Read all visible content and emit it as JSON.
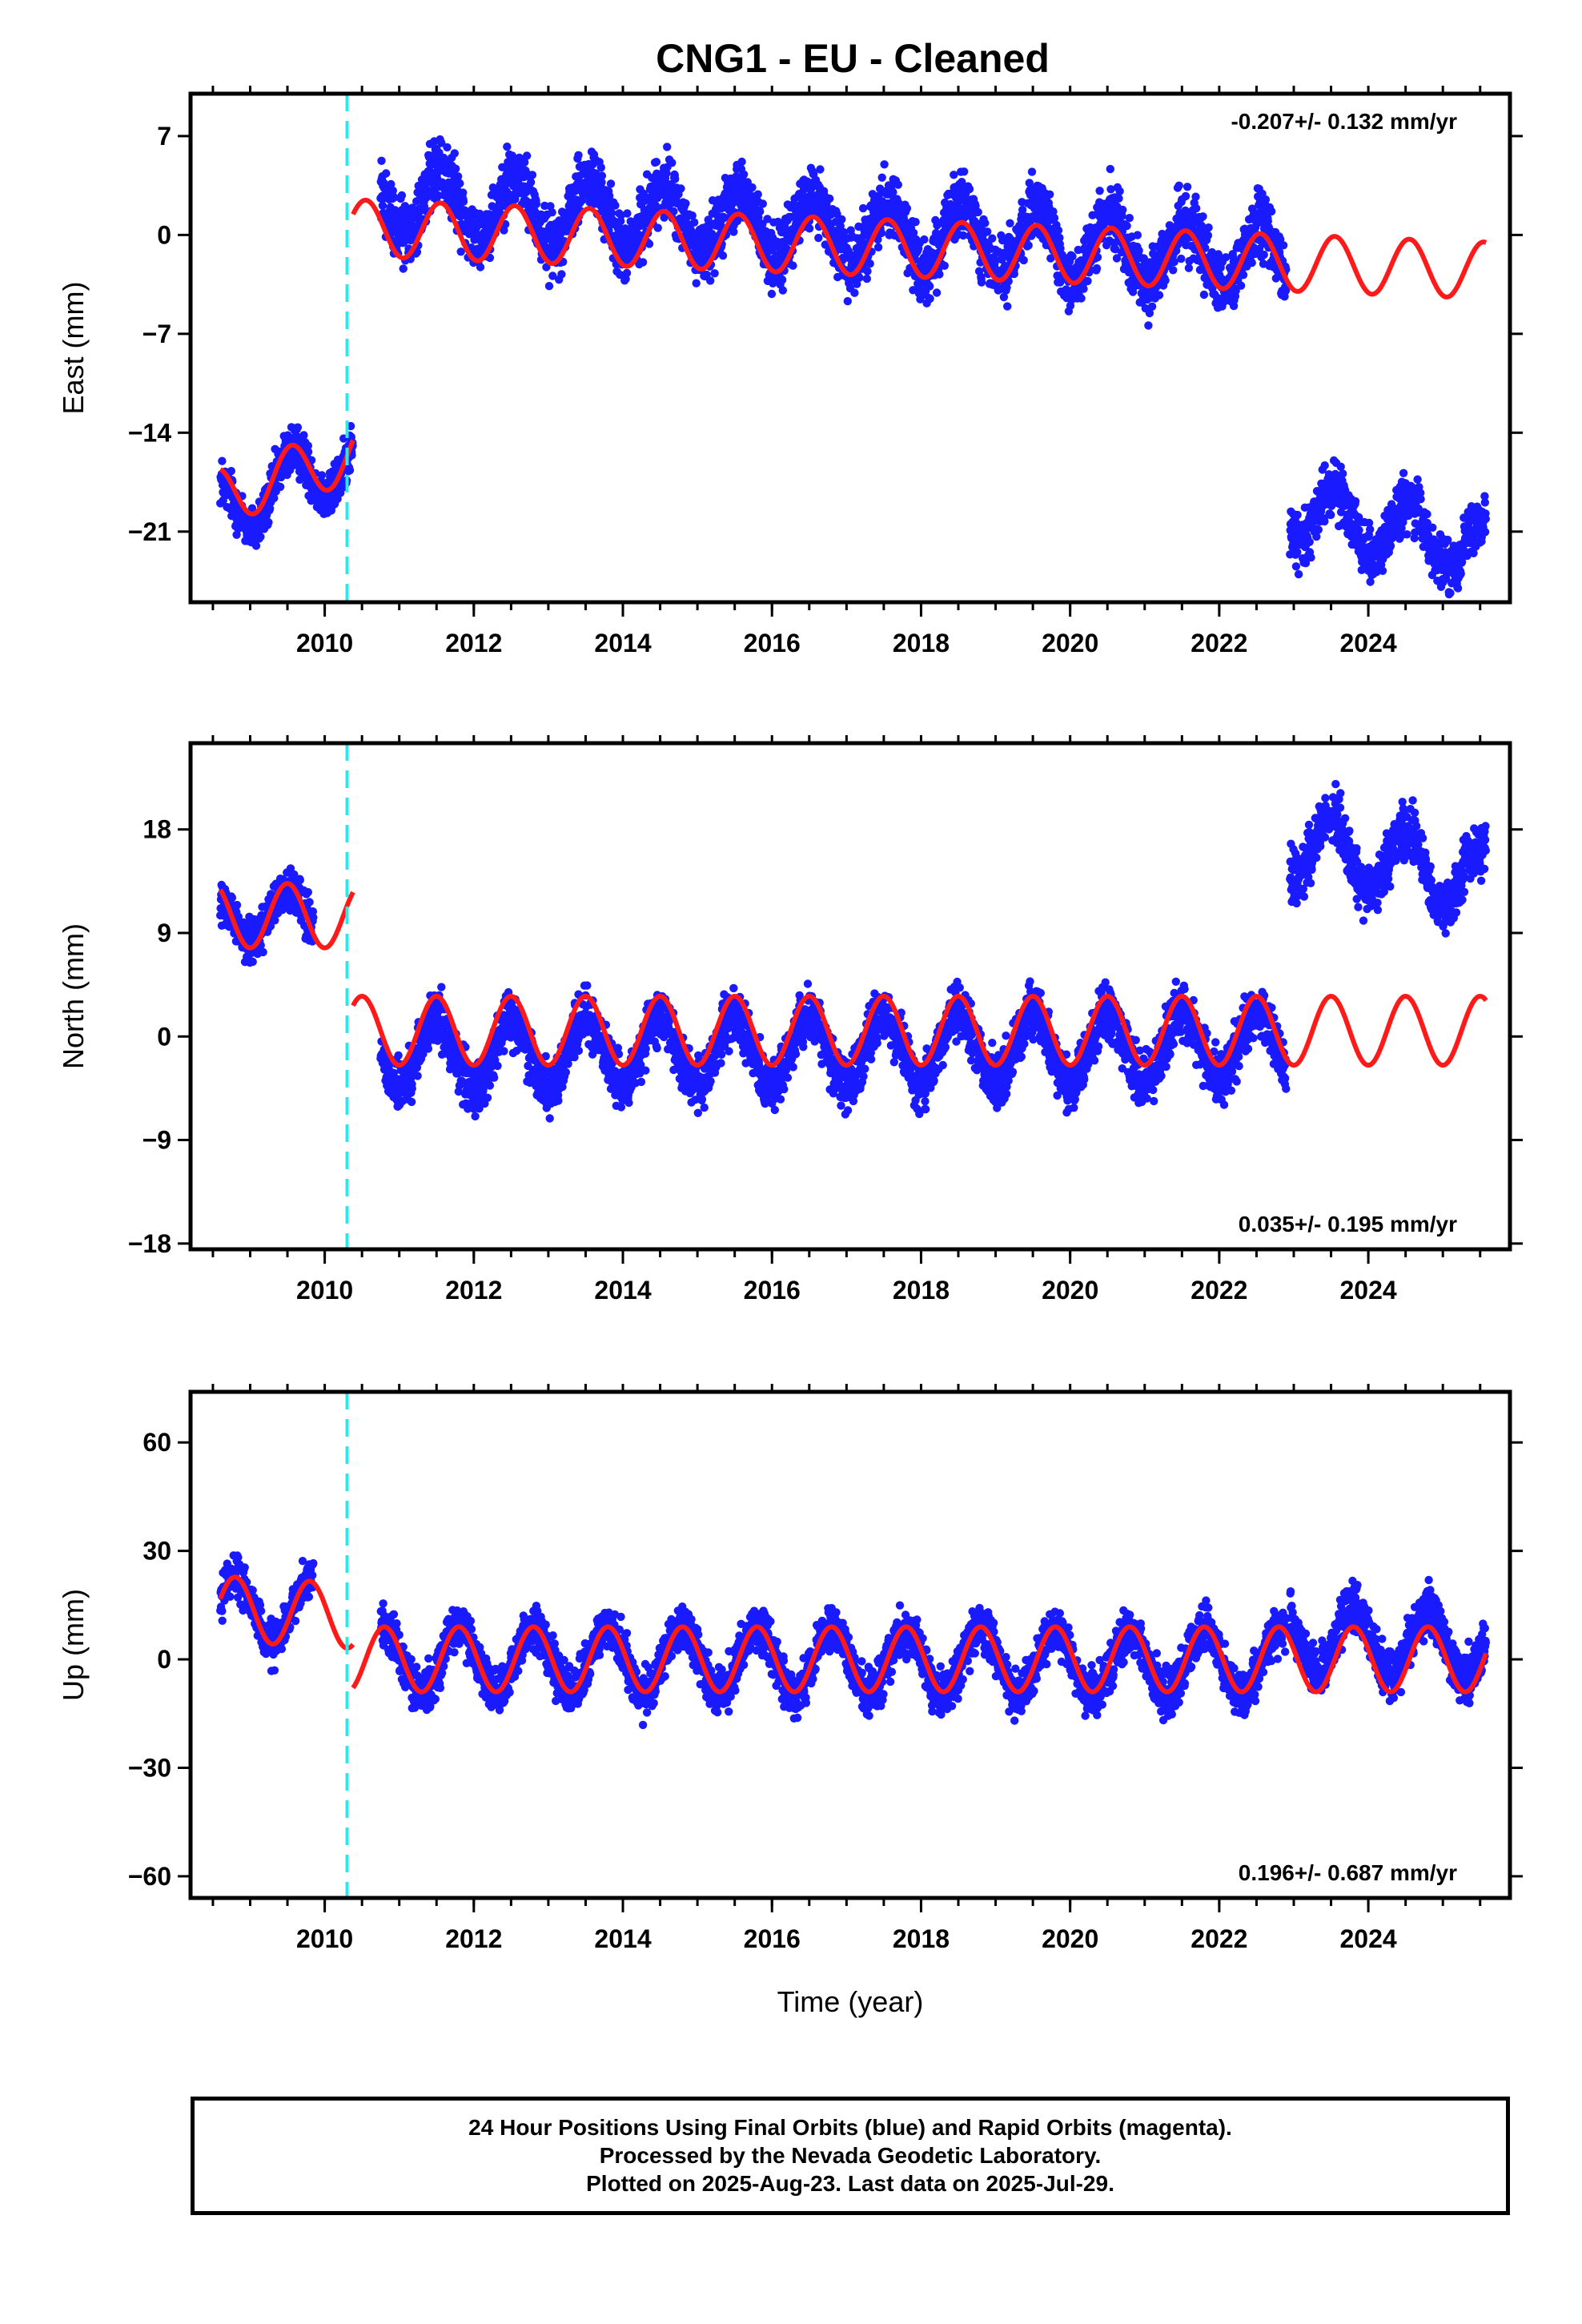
{
  "title": "CNG1  - EU - Cleaned",
  "colors": {
    "data": "#1a1aff",
    "model": "#ff1a1a",
    "event": "#33e5e5",
    "frame": "#000000"
  },
  "chart_data": [
    {
      "type": "scatter",
      "name": "east",
      "ylabel": "East (mm)",
      "xlabel": "",
      "xlim": [
        2008.2,
        2025.9
      ],
      "ylim": [
        -26,
        10
      ],
      "yticks": [
        7,
        0,
        -7,
        -14,
        -21
      ],
      "ytick_labels": [
        "7",
        "0",
        "−7",
        "−14",
        "−21"
      ],
      "xticks": [
        2010,
        2012,
        2014,
        2016,
        2018,
        2020,
        2022,
        2024
      ],
      "rate": "-0.207+/- 0.132 mm/yr",
      "rate_position": "top-right",
      "event_line": 2010.3,
      "data_segments": [
        {
          "x0": 2008.6,
          "x1": 2010.38,
          "level0": -19.5,
          "level1": -15.5,
          "amp": 2.2,
          "phase": 0.3,
          "noise": 1.5
        },
        {
          "x0": 2010.75,
          "x1": 2022.9,
          "level0": 2.5,
          "level1": -1.8,
          "amp": 2.3,
          "phase": 0.3,
          "noise": 2.0
        },
        {
          "x0": 2022.95,
          "x1": 2025.58,
          "level0": -19.5,
          "level1": -22.0,
          "amp": 2.0,
          "phase": 0.3,
          "noise": 1.6
        }
      ],
      "model_segments": [
        {
          "x0": 2008.6,
          "x1": 2010.38,
          "level0": -18.5,
          "level1": -15.5,
          "amp": 2.0,
          "phase": 0.3
        },
        {
          "x0": 2010.38,
          "x1": 2025.58,
          "level0": 0.5,
          "level1": -2.5,
          "amp": 2.0,
          "phase": 0.3
        }
      ]
    },
    {
      "type": "scatter",
      "name": "north",
      "ylabel": "North (mm)",
      "xlabel": "",
      "xlim": [
        2008.2,
        2025.9
      ],
      "ylim": [
        -18.5,
        25.5
      ],
      "yticks": [
        18,
        9,
        0,
        -9,
        -18
      ],
      "ytick_labels": [
        "18",
        "9",
        "0",
        "−9",
        "−18"
      ],
      "xticks": [
        2010,
        2012,
        2014,
        2016,
        2018,
        2020,
        2022,
        2024
      ],
      "rate": "0.035+/- 0.195 mm/yr",
      "rate_position": "bottom-right",
      "event_line": 2010.3,
      "data_segments": [
        {
          "x0": 2008.6,
          "x1": 2009.85,
          "level0": 10.5,
          "level1": 10.5,
          "amp": 2.0,
          "phase": 0.25,
          "noise": 1.6
        },
        {
          "x0": 2010.75,
          "x1": 2022.9,
          "level0": -1.5,
          "level1": -0.8,
          "amp": 3.0,
          "phase": 0.25,
          "noise": 2.0
        },
        {
          "x0": 2022.95,
          "x1": 2025.58,
          "level0": 17.0,
          "level1": 13.5,
          "amp": 3.0,
          "phase": 0.25,
          "noise": 2.0
        }
      ],
      "model_segments": [
        {
          "x0": 2008.6,
          "x1": 2010.38,
          "level0": 10.5,
          "level1": 10.5,
          "amp": 2.8,
          "phase": 0.25
        },
        {
          "x0": 2010.38,
          "x1": 2025.58,
          "level0": 0.5,
          "level1": 0.5,
          "amp": 3.0,
          "phase": 0.25
        }
      ]
    },
    {
      "type": "scatter",
      "name": "up",
      "ylabel": "Up (mm)",
      "xlabel": "Time (year)",
      "xlim": [
        2008.2,
        2025.9
      ],
      "ylim": [
        -66,
        74
      ],
      "yticks": [
        60,
        30,
        0,
        -30,
        -60
      ],
      "ytick_labels": [
        "60",
        "30",
        "0",
        "−30",
        "−60"
      ],
      "xticks": [
        2010,
        2012,
        2014,
        2016,
        2018,
        2020,
        2022,
        2024
      ],
      "rate": "0.196+/- 0.687 mm/yr",
      "rate_position": "bottom-right",
      "event_line": 2010.3,
      "data_segments": [
        {
          "x0": 2008.6,
          "x1": 2009.85,
          "level0": 14.0,
          "level1": 14.0,
          "amp": 9.0,
          "phase": 0.55,
          "noise": 5.0
        },
        {
          "x0": 2010.75,
          "x1": 2022.9,
          "level0": 0.0,
          "level1": -1.0,
          "amp": 9.0,
          "phase": 0.55,
          "noise": 5.5
        },
        {
          "x0": 2022.95,
          "x1": 2025.58,
          "level0": 6.0,
          "level1": 4.0,
          "amp": 9.0,
          "phase": 0.55,
          "noise": 5.5
        }
      ],
      "model_segments": [
        {
          "x0": 2008.6,
          "x1": 2010.38,
          "level0": 14.0,
          "level1": 12.0,
          "amp": 9.0,
          "phase": 0.55
        },
        {
          "x0": 2010.38,
          "x1": 2025.58,
          "level0": 0.0,
          "level1": 0.0,
          "amp": 9.0,
          "phase": 0.55
        }
      ]
    }
  ],
  "footer": {
    "line1": "24 Hour Positions Using Final Orbits (blue) and Rapid Orbits (magenta).",
    "line2": "Processed by the Nevada Geodetic Laboratory.",
    "line3": "Plotted on 2025-Aug-23. Last data on 2025-Jul-29."
  }
}
